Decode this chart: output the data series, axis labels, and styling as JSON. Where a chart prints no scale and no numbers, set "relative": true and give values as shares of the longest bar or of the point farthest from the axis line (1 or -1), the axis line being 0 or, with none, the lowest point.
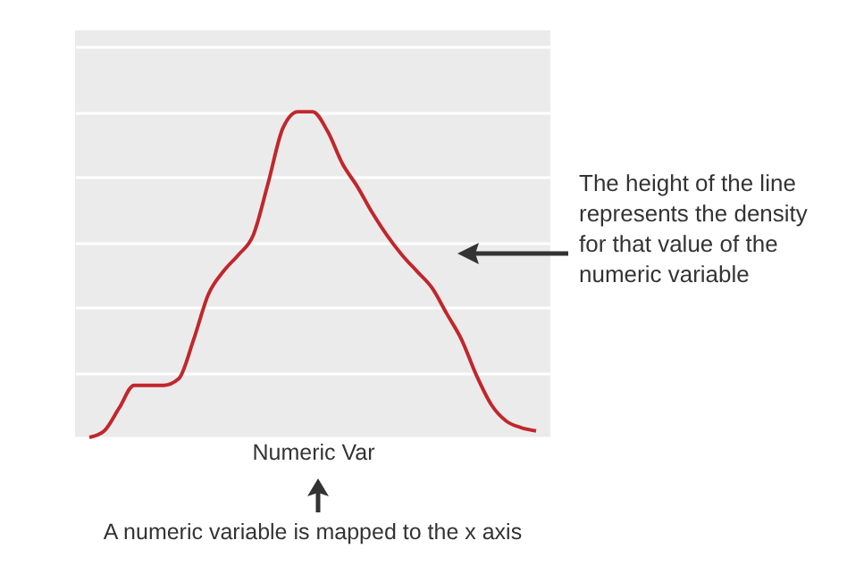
{
  "chart_data": {
    "type": "line",
    "relative": true,
    "xlabel": "Numeric Var",
    "tick_labels": false,
    "grid": "y",
    "categories": [
      null,
      null,
      null,
      null,
      null,
      null,
      null,
      null,
      null,
      null,
      null,
      null,
      null,
      null,
      null,
      null,
      null,
      null,
      null,
      null,
      null,
      null,
      null,
      null,
      null,
      null,
      null,
      null,
      null,
      null,
      null
    ],
    "series": [
      {
        "color": "#c0272d",
        "values": [
          0.0,
          0.02,
          0.09,
          0.16,
          0.16,
          0.16,
          0.18,
          0.3,
          0.44,
          0.51,
          0.56,
          0.62,
          0.78,
          0.95,
          1.0,
          1.0,
          0.94,
          0.84,
          0.77,
          0.69,
          0.62,
          0.56,
          0.51,
          0.46,
          0.38,
          0.3,
          0.19,
          0.1,
          0.05,
          0.03,
          0.02
        ]
      }
    ],
    "annotations": [
      "The height of the line represents the density for that value of the numeric variable",
      "A numeric variable is mapped to the x axis"
    ]
  }
}
